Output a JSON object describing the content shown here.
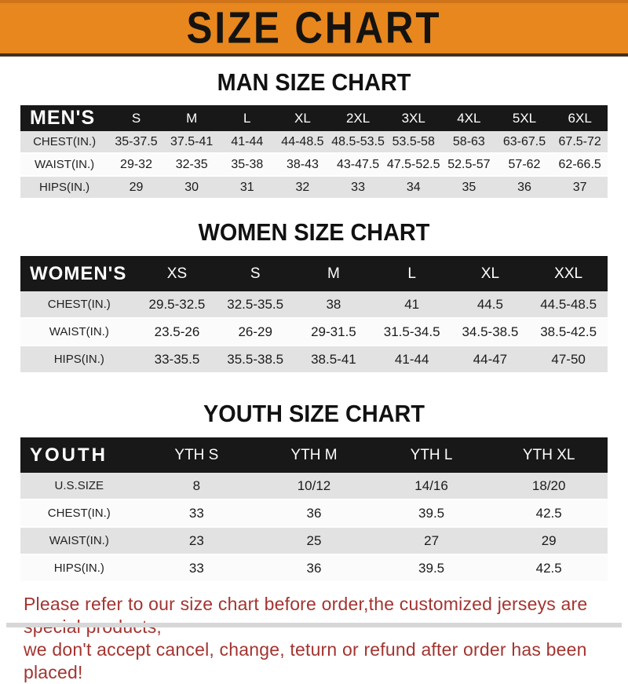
{
  "banner": {
    "title": "SIZE CHART"
  },
  "colors": {
    "banner_bg": "#E8871E",
    "banner_text": "#151310",
    "header_bar_bg": "#181818",
    "header_bar_text": "#FFFFFF",
    "row_shaded": "#E2E2E2",
    "row_plain": "#FBFBFB",
    "notice_text": "#A33430"
  },
  "sections": [
    {
      "id": "men",
      "title": "MAN SIZE CHART",
      "header_label": "MEN'S",
      "columns": [
        "S",
        "M",
        "L",
        "XL",
        "2XL",
        "3XL",
        "4XL",
        "5XL",
        "6XL"
      ],
      "rows": [
        {
          "label": "CHEST(IN.)",
          "values": [
            "35-37.5",
            "37.5-41",
            "41-44",
            "44-48.5",
            "48.5-53.5",
            "53.5-58",
            "58-63",
            "63-67.5",
            "67.5-72"
          ]
        },
        {
          "label": "WAIST(IN.)",
          "values": [
            "29-32",
            "32-35",
            "35-38",
            "38-43",
            "43-47.5",
            "47.5-52.5",
            "52.5-57",
            "57-62",
            "62-66.5"
          ]
        },
        {
          "label": "HIPS(IN.)",
          "values": [
            "29",
            "30",
            "31",
            "32",
            "33",
            "34",
            "35",
            "36",
            "37"
          ]
        }
      ]
    },
    {
      "id": "women",
      "title": "WOMEN SIZE CHART",
      "header_label": "WOMEN'S",
      "columns": [
        "XS",
        "S",
        "M",
        "L",
        "XL",
        "XXL"
      ],
      "rows": [
        {
          "label": "CHEST(IN.)",
          "values": [
            "29.5-32.5",
            "32.5-35.5",
            "38",
            "41",
            "44.5",
            "44.5-48.5"
          ]
        },
        {
          "label": "WAIST(IN.)",
          "values": [
            "23.5-26",
            "26-29",
            "29-31.5",
            "31.5-34.5",
            "34.5-38.5",
            "38.5-42.5"
          ]
        },
        {
          "label": "HIPS(IN.)",
          "values": [
            "33-35.5",
            "35.5-38.5",
            "38.5-41",
            "41-44",
            "44-47",
            "47-50"
          ]
        }
      ]
    },
    {
      "id": "youth",
      "title": "YOUTH SIZE CHART",
      "header_label": "YOUTH",
      "columns": [
        "YTH S",
        "YTH M",
        "YTH L",
        "YTH XL"
      ],
      "rows": [
        {
          "label": "U.S.SIZE",
          "values": [
            "8",
            "10/12",
            "14/16",
            "18/20"
          ]
        },
        {
          "label": "CHEST(IN.)",
          "values": [
            "33",
            "36",
            "39.5",
            "42.5"
          ]
        },
        {
          "label": "WAIST(IN.)",
          "values": [
            "23",
            "25",
            "27",
            "29"
          ]
        },
        {
          "label": "HIPS(IN.)",
          "values": [
            "33",
            "36",
            "39.5",
            "42.5"
          ]
        }
      ]
    }
  ],
  "footer": {
    "lines": [
      "Please refer to our size chart before order,the customized jerseys are special products,",
      "we don't accept cancel, change, teturn or refund after order has been placed!"
    ]
  }
}
